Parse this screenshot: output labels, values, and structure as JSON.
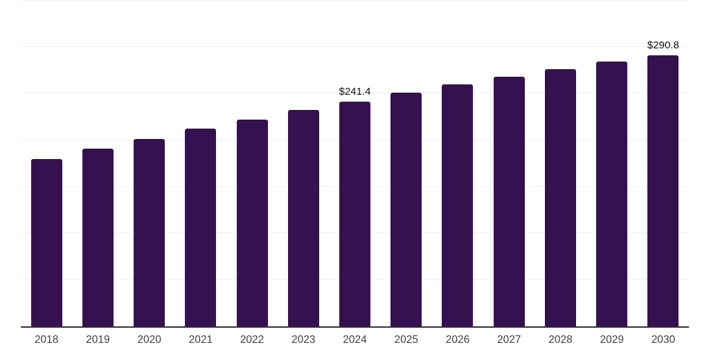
{
  "chart_data": {
    "type": "bar",
    "title": "",
    "categories": [
      "2018",
      "2019",
      "2020",
      "2021",
      "2022",
      "2023",
      "2024",
      "2025",
      "2026",
      "2027",
      "2028",
      "2029",
      "2030"
    ],
    "values": [
      180.0,
      191.0,
      201.5,
      212.0,
      222.3,
      232.4,
      241.4,
      250.9,
      259.6,
      267.9,
      275.9,
      284.0,
      290.8
    ],
    "data_labels": [
      "",
      "",
      "",
      "",
      "",
      "",
      "$241.4",
      "",
      "",
      "",
      "",
      "",
      "$290.8"
    ],
    "xlabel": "",
    "ylabel": "",
    "ylim": [
      0,
      350
    ],
    "gridline_step": 50,
    "grid": "on",
    "legend": "none",
    "y_tick_labels_visible": false,
    "colors": {
      "bar": "#361150",
      "gridline": "#efefef",
      "axis_line": "#333333",
      "x_tick_label": "#404040",
      "data_label": "#131313",
      "background": "#ffffff"
    }
  }
}
